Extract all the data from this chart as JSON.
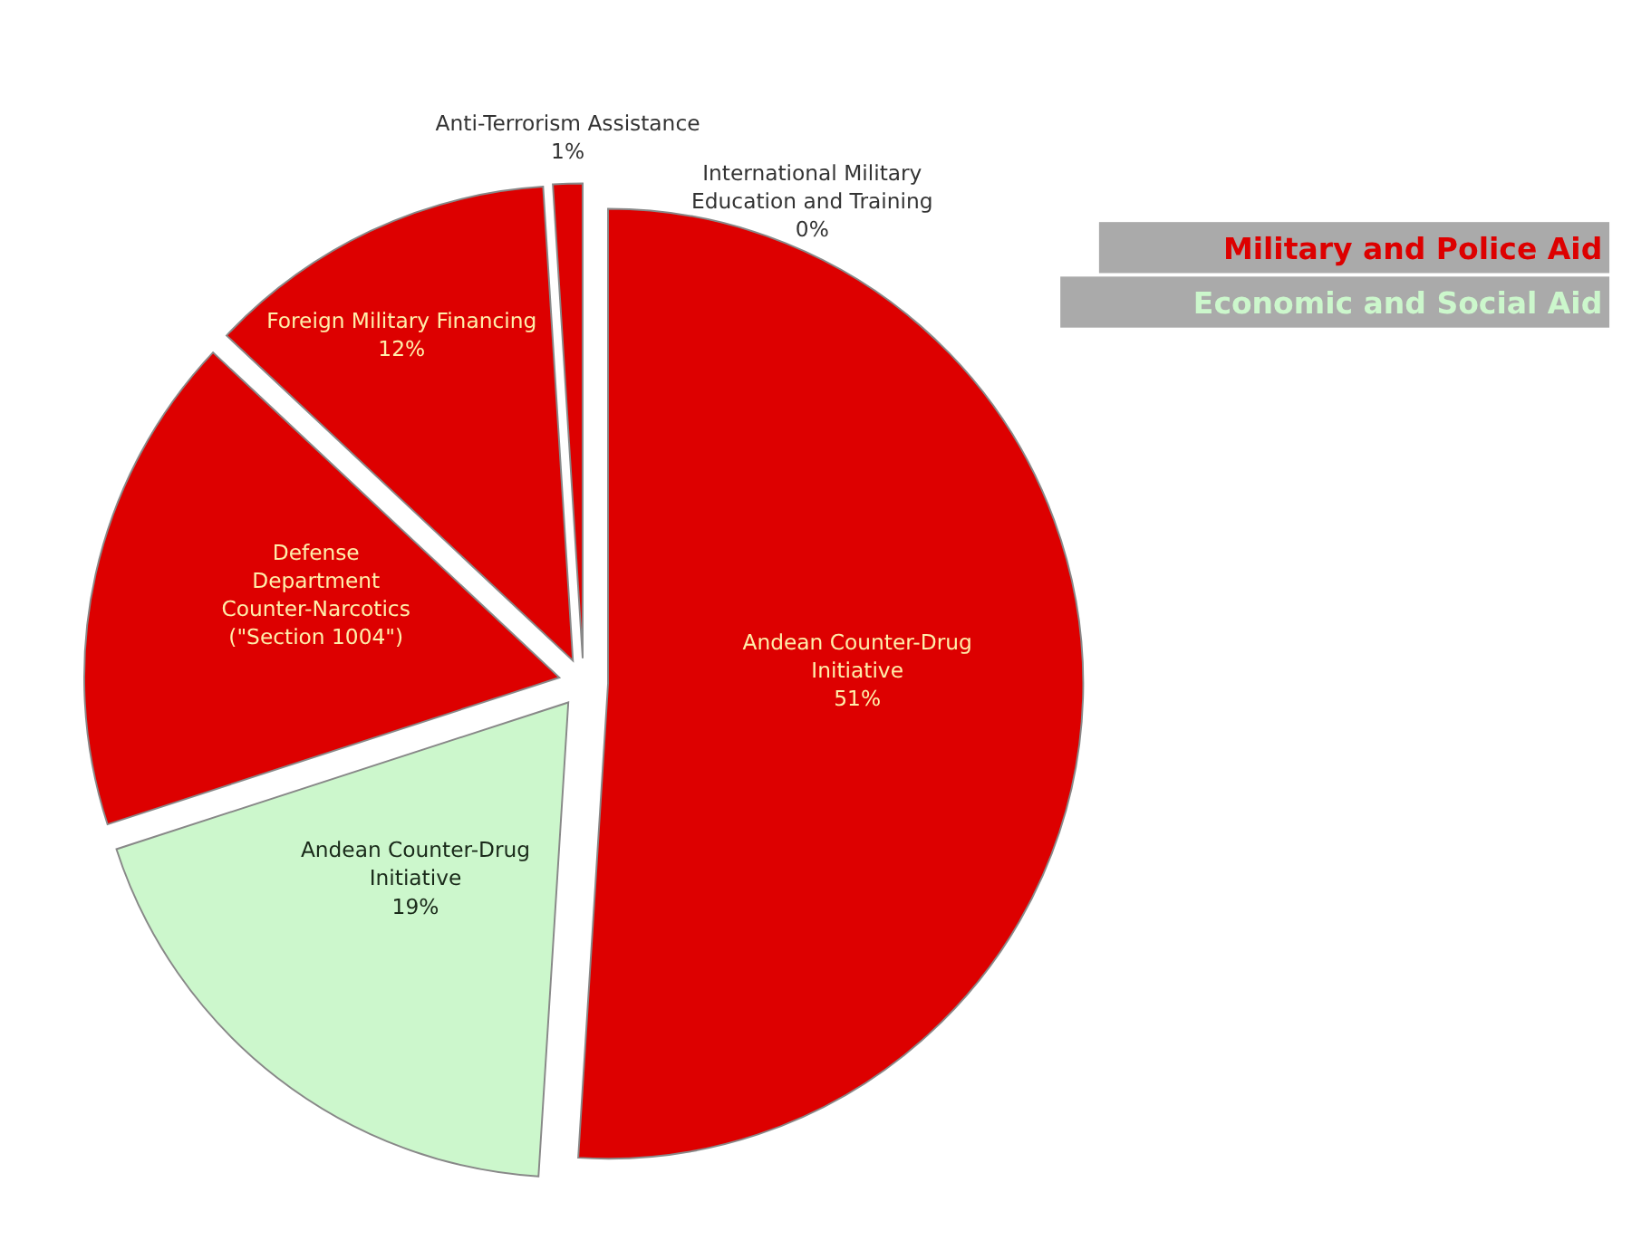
{
  "chart_data": {
    "type": "pie",
    "categories": [
      "Andean Counter-Drug\nInitiative",
      "Andean Counter-Drug\nInitiative",
      "Defense\nDepartment\nCounter-Narcotics\n(\"Section 1004\")",
      "Foreign Military Financing",
      "Anti-Terrorism Assistance",
      "International Military\nEducation and Training"
    ],
    "values": [
      51,
      19,
      17,
      12,
      1,
      0
    ],
    "value_labels": [
      "51%",
      "19%",
      null,
      "12%",
      "1%",
      "0%"
    ],
    "colors": [
      "#dd0000",
      "#ccf7cc",
      "#dd0000",
      "#dd0000",
      "#dd0000",
      "#dd0000"
    ],
    "annotations": [
      "Military and Police Aid",
      "Economic and Social Aid"
    ]
  }
}
